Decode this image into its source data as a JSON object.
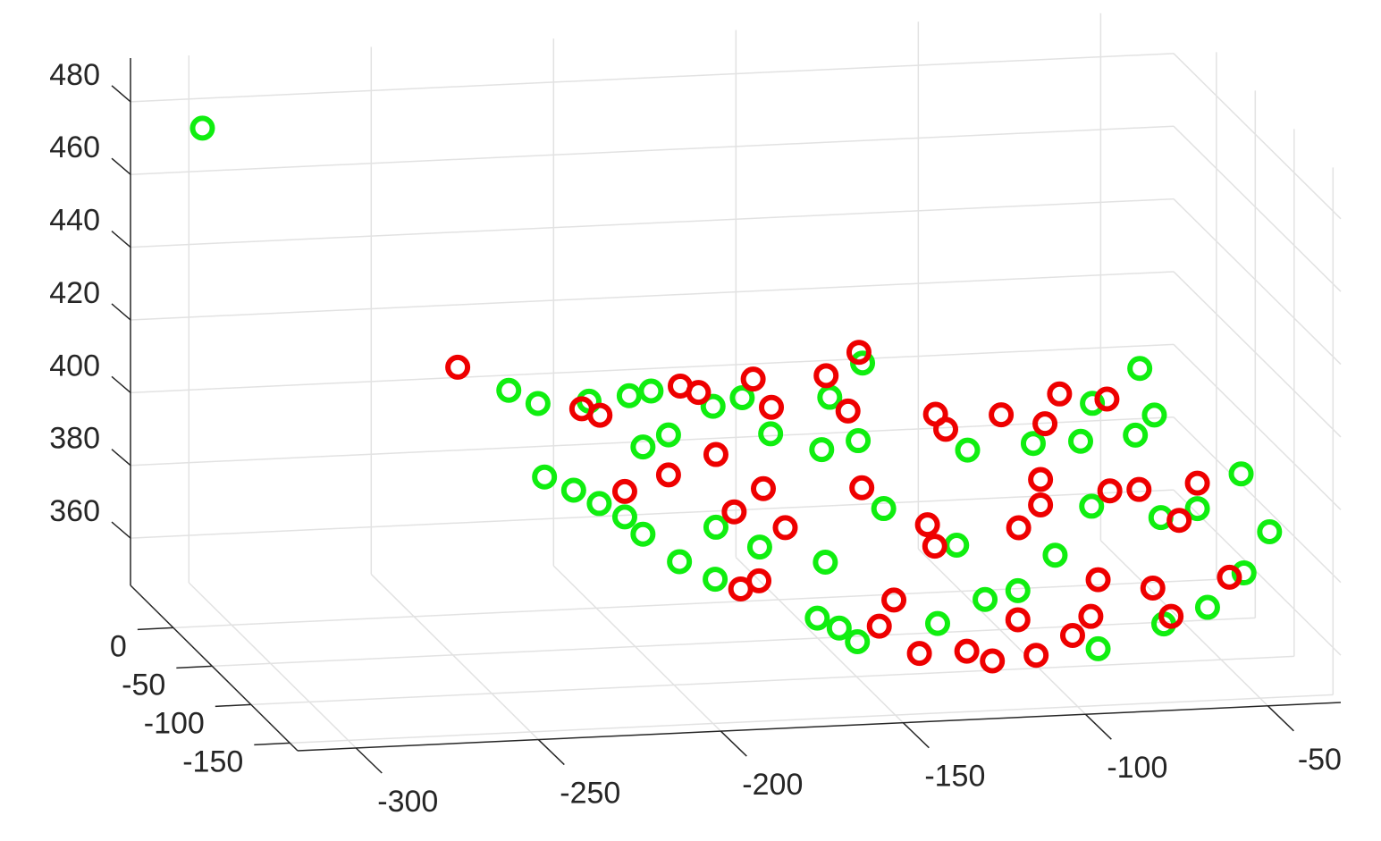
{
  "chart_data": {
    "type": "scatter3d",
    "xlim": [
      -316,
      -30
    ],
    "ylim": [
      -160,
      55
    ],
    "zlim": [
      347,
      492
    ],
    "xticks": [
      -300,
      -250,
      -200,
      -150,
      -100,
      -50
    ],
    "yticks": [
      -150,
      -100,
      -50,
      0
    ],
    "zticks": [
      360,
      380,
      400,
      420,
      440,
      460,
      480
    ],
    "grid": true,
    "series": [
      {
        "color": "#10ee10",
        "x": [
          -308,
          -224,
          -216,
          -202,
          -191,
          -185,
          -168,
          -160,
          -127,
          -136,
          -64,
          -51,
          -47,
          -65,
          -165,
          -200,
          -193,
          -151,
          -141,
          -111,
          -93,
          -80,
          -36,
          -227,
          -219,
          -212,
          -205,
          -200,
          -134,
          -114,
          -77,
          -58,
          -41,
          -48,
          -180,
          -168,
          -190,
          -150,
          -87,
          -165,
          -159,
          -119,
          -110,
          -132,
          -88,
          -70,
          -58,
          -48,
          -193,
          -154
        ],
        "y": [
          0,
          0,
          0,
          0,
          0,
          0,
          0,
          0,
          0,
          0,
          0,
          0,
          0,
          -60,
          -60,
          -60,
          -60,
          -60,
          -60,
          -60,
          -60,
          -60,
          -60,
          -60,
          -60,
          -60,
          -60,
          -60,
          -60,
          -60,
          -60,
          -60,
          -120,
          -60,
          -60,
          -60,
          -60,
          -60,
          -60,
          -120,
          -120,
          -120,
          -120,
          -120,
          -120,
          -120,
          -120,
          -120,
          -120,
          -120
        ],
        "z": [
          484,
          408,
          404,
          404,
          405,
          406,
          401,
          403,
          411,
          402,
          397,
          406,
          393,
          401,
          406,
          404,
          407,
          401,
          403,
          399,
          400,
          400,
          389,
          397,
          393,
          389,
          385,
          380,
          384,
          373,
          382,
          378,
          386,
          380,
          381,
          375,
          372,
          370,
          369,
          368,
          365,
          371,
          373,
          365,
          356,
          362,
          366,
          375,
          380,
          361
        ]
      },
      {
        "color": "#ee0000",
        "x": [
          -238,
          -204,
          -199,
          -177,
          -172,
          -157,
          -152,
          -137,
          -128,
          -131,
          -107,
          -89,
          -73,
          -77,
          -60,
          -117,
          -180,
          -193,
          -140,
          -167,
          -91,
          -72,
          -64,
          -48,
          -122,
          -120,
          -97,
          -91,
          -53,
          -205,
          -175,
          -161,
          -181,
          -186,
          -144,
          -148,
          -137,
          -124,
          -117,
          -110,
          -105,
          -90,
          -88,
          -73,
          -52,
          -68,
          -95
        ],
        "y": [
          0,
          0,
          0,
          0,
          0,
          0,
          0,
          0,
          0,
          0,
          0,
          0,
          0,
          0,
          0,
          -60,
          -60,
          -60,
          -60,
          -60,
          -60,
          -60,
          -60,
          -60,
          -60,
          -60,
          -60,
          -60,
          -60,
          -60,
          -60,
          -60,
          -120,
          -120,
          -120,
          -120,
          -120,
          -120,
          -120,
          -120,
          -120,
          -120,
          -120,
          -120,
          -120,
          -120,
          -120
        ],
        "z": [
          415,
          402,
          400,
          407,
          405,
          408,
          400,
          408,
          414,
          398,
          396,
          395,
          400,
          392,
          398,
          405,
          401,
          396,
          390,
          391,
          390,
          386,
          386,
          387,
          379,
          373,
          377,
          383,
          377,
          392,
          385,
          380,
          379,
          377,
          372,
          365,
          357,
          357,
          354,
          365,
          355,
          365,
          375,
          372,
          374,
          364,
          360
        ]
      }
    ]
  }
}
